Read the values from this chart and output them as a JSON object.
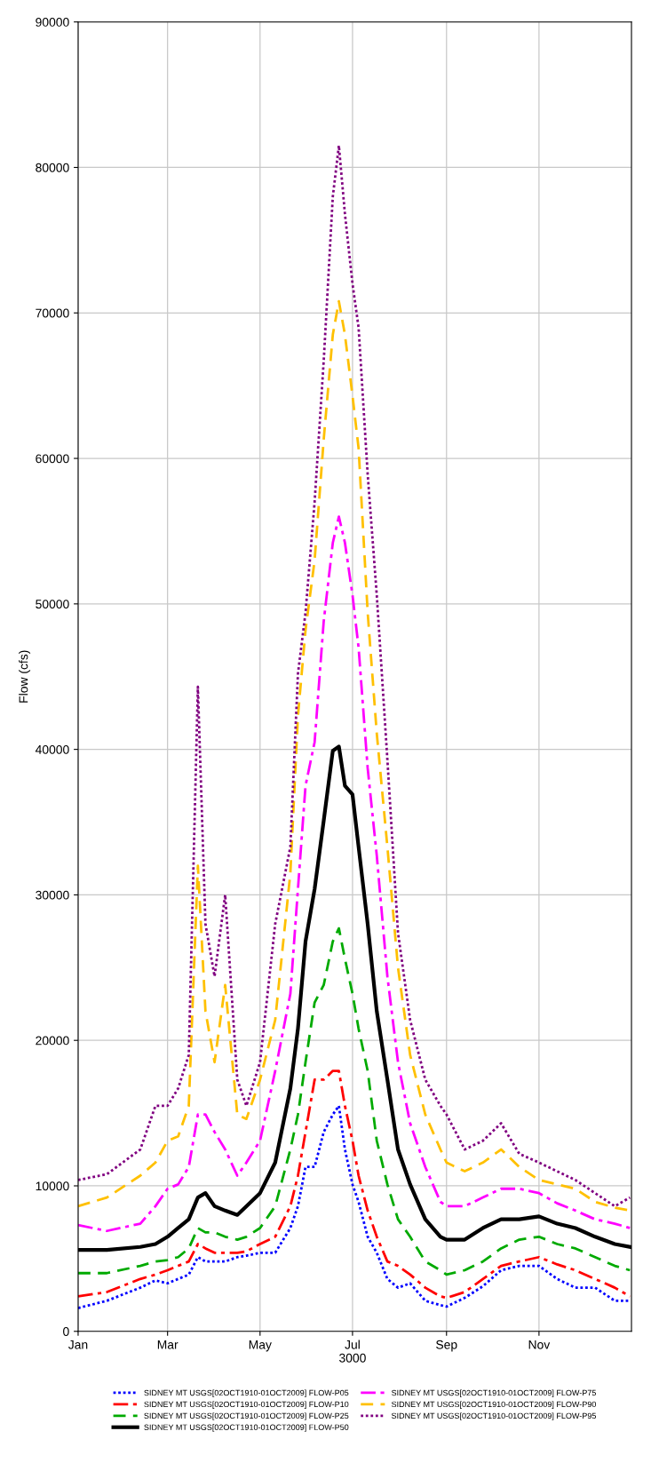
{
  "chart_data": {
    "type": "line",
    "ylabel": "Flow (cfs)",
    "x": [
      "3000-01-01",
      "3000-01-20",
      "3000-02-11",
      "3000-02-21",
      "3000-03-01",
      "3000-03-08",
      "3000-03-15",
      "3000-03-21",
      "3000-03-26",
      "3000-04-01",
      "3000-04-08",
      "3000-04-16",
      "3000-04-22",
      "3000-05-01",
      "3000-05-11",
      "3000-05-21",
      "3000-05-26",
      "3000-05-31",
      "3000-06-06",
      "3000-06-12",
      "3000-06-18",
      "3000-06-22",
      "3000-06-26",
      "3000-07-01",
      "3000-07-05",
      "3000-07-11",
      "3000-07-17",
      "3000-07-24",
      "3000-07-31",
      "3000-08-08",
      "3000-08-18",
      "3000-08-28",
      "3000-09-01",
      "3000-09-13",
      "3000-09-25",
      "3000-10-07",
      "3000-10-19",
      "3000-11-01",
      "3000-11-13",
      "3000-11-25",
      "3000-12-08",
      "3000-12-21",
      "3000-12-31"
    ],
    "series": [
      {
        "name": "SIDNEY MT USGS[02OCT1910-01OCT2009] FLOW-P05",
        "color": "#0000ff",
        "line_style": "dotted",
        "values": [
          1600,
          2100,
          3000,
          3500,
          3300,
          3600,
          3900,
          5100,
          4800,
          4800,
          4800,
          5100,
          5200,
          5400,
          5400,
          7100,
          8600,
          11300,
          11300,
          13700,
          14900,
          15500,
          12500,
          10100,
          8900,
          6500,
          5400,
          3600,
          3000,
          3300,
          2100,
          1800,
          1700,
          2300,
          3100,
          4200,
          4500,
          4500,
          3600,
          3000,
          3000,
          2100,
          2100
        ]
      },
      {
        "name": "SIDNEY MT USGS[02OCT1910-01OCT2009] FLOW-P10",
        "color": "#ff0000",
        "line_style": "dashdot",
        "values": [
          2400,
          2700,
          3600,
          3900,
          4200,
          4500,
          4800,
          6000,
          5700,
          5400,
          5400,
          5400,
          5500,
          6000,
          6500,
          8600,
          10700,
          13700,
          17300,
          17300,
          17900,
          17900,
          15500,
          13100,
          10700,
          8300,
          6500,
          4800,
          4500,
          3900,
          3000,
          2400,
          2300,
          2700,
          3600,
          4500,
          4800,
          5100,
          4600,
          4200,
          3600,
          3000,
          2400
        ]
      },
      {
        "name": "SIDNEY MT USGS[02OCT1910-01OCT2009] FLOW-P25",
        "color": "#00aa00",
        "line_style": "dashed",
        "values": [
          4000,
          4000,
          4500,
          4800,
          4900,
          5100,
          5700,
          7100,
          6800,
          6800,
          6500,
          6300,
          6500,
          7100,
          8600,
          12500,
          14900,
          18500,
          22600,
          23800,
          26800,
          27700,
          25600,
          23200,
          20800,
          17900,
          13100,
          10100,
          7700,
          6500,
          4800,
          4200,
          3900,
          4200,
          4800,
          5700,
          6300,
          6500,
          6000,
          5700,
          5100,
          4500,
          4200
        ]
      },
      {
        "name": "SIDNEY MT USGS[02OCT1910-01OCT2009] FLOW-P50",
        "color": "#000000",
        "line_style": "solid",
        "values": [
          5600,
          5600,
          5800,
          6000,
          6500,
          7100,
          7700,
          9200,
          9500,
          8600,
          8300,
          8000,
          8600,
          9500,
          11600,
          16700,
          20800,
          26800,
          30400,
          35100,
          39900,
          40200,
          37500,
          36900,
          33300,
          28000,
          22000,
          17300,
          12500,
          10100,
          7700,
          6500,
          6300,
          6300,
          7100,
          7700,
          7700,
          7900,
          7400,
          7100,
          6500,
          6000,
          5800
        ]
      },
      {
        "name": "SIDNEY MT USGS[02OCT1910-01OCT2009] FLOW-P75",
        "color": "#ff00ff",
        "line_style": "dashdot",
        "values": [
          7300,
          6900,
          7400,
          8600,
          9800,
          10100,
          11300,
          14900,
          14900,
          13700,
          12500,
          10700,
          11600,
          13100,
          17900,
          23200,
          30400,
          37500,
          40500,
          48800,
          54200,
          56000,
          54200,
          50600,
          47000,
          38700,
          32700,
          24400,
          18500,
          14300,
          11300,
          8900,
          8600,
          8600,
          9200,
          9800,
          9800,
          9500,
          8800,
          8300,
          7700,
          7400,
          7100
        ]
      },
      {
        "name": "SIDNEY MT USGS[02OCT1910-01OCT2009] FLOW-P90",
        "color": "#ffc000",
        "line_style": "dashed",
        "values": [
          8600,
          9200,
          10700,
          11600,
          13100,
          13400,
          15500,
          32000,
          22000,
          18500,
          23800,
          14900,
          14600,
          17300,
          21400,
          31500,
          42300,
          48200,
          53000,
          61300,
          68500,
          70800,
          68500,
          64300,
          60700,
          49400,
          41100,
          33300,
          25000,
          19000,
          14900,
          12500,
          11600,
          11000,
          11600,
          12500,
          11300,
          10400,
          10100,
          9800,
          8900,
          8500,
          8300
        ]
      },
      {
        "name": "SIDNEY MT USGS[02OCT1910-01OCT2009] FLOW-P95",
        "color": "#800080",
        "line_style": "dotted",
        "values": [
          10400,
          10800,
          12500,
          15500,
          15500,
          16700,
          19000,
          44300,
          28000,
          24400,
          30000,
          17300,
          15500,
          18500,
          28000,
          33300,
          45200,
          49400,
          57000,
          66700,
          78000,
          81500,
          76800,
          72000,
          69000,
          58900,
          50600,
          39300,
          27400,
          21400,
          17300,
          15500,
          14900,
          12500,
          13100,
          14300,
          12200,
          11600,
          11000,
          10400,
          9500,
          8600,
          9200
        ]
      }
    ],
    "xlim": [
      "3000-01-01",
      "3001-01-01"
    ],
    "xticks": [
      {
        "value": "3000-01-01",
        "label": "Jan"
      },
      {
        "value": "3000-03-01",
        "label": "Mar"
      },
      {
        "value": "3000-05-01",
        "label": "May"
      },
      {
        "value": "3000-07-01",
        "label": "Jul\n3000"
      },
      {
        "value": "3000-09-01",
        "label": "Sep"
      },
      {
        "value": "3000-11-01",
        "label": "Nov"
      }
    ],
    "ylim": [
      0,
      90000
    ],
    "yticks": [
      0,
      10000,
      20000,
      30000,
      40000,
      50000,
      60000,
      70000,
      80000,
      90000
    ],
    "grid": true,
    "legend": "bottom"
  }
}
